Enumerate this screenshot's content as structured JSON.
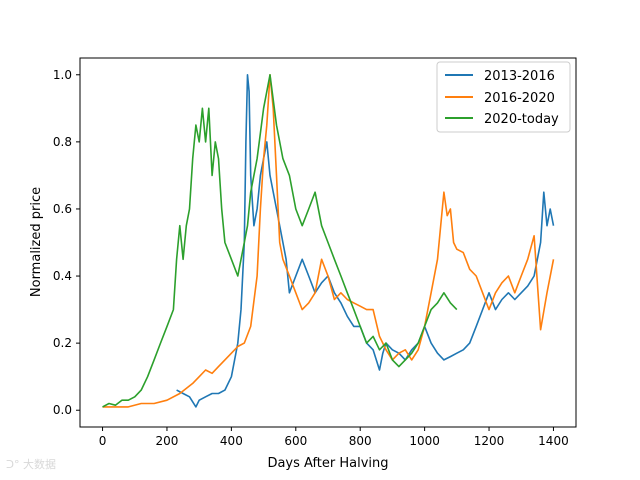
{
  "chart_data": {
    "type": "line",
    "title": "",
    "xlabel": "Days After Halving",
    "ylabel": "Normalized price",
    "xlim": [
      -70,
      1470
    ],
    "ylim": [
      -0.05,
      1.05
    ],
    "x_ticks": [
      0,
      200,
      400,
      600,
      800,
      1000,
      1200,
      1400
    ],
    "x_tick_labels": [
      "0",
      "200",
      "400",
      "600",
      "800",
      "1000",
      "1200",
      "1400"
    ],
    "y_ticks": [
      0.0,
      0.2,
      0.4,
      0.6,
      0.8,
      1.0
    ],
    "y_tick_labels": [
      "0.0",
      "0.2",
      "0.4",
      "0.6",
      "0.8",
      "1.0"
    ],
    "grid": false,
    "legend_position": "top-right",
    "series": [
      {
        "name": "2013-2016",
        "color": "#1f77b4",
        "x": [
          230,
          250,
          270,
          290,
          300,
          320,
          340,
          360,
          380,
          400,
          420,
          430,
          440,
          445,
          450,
          455,
          460,
          470,
          480,
          490,
          500,
          510,
          520,
          540,
          560,
          570,
          580,
          600,
          620,
          640,
          660,
          680,
          700,
          720,
          740,
          760,
          780,
          800,
          820,
          840,
          860,
          870,
          880,
          900,
          920,
          940,
          960,
          980,
          1000,
          1020,
          1040,
          1060,
          1080,
          1100,
          1120,
          1140,
          1160,
          1180,
          1200,
          1220,
          1240,
          1260,
          1280,
          1300,
          1320,
          1340,
          1360,
          1370,
          1380,
          1390,
          1400
        ],
        "y": [
          0.06,
          0.05,
          0.04,
          0.01,
          0.03,
          0.04,
          0.05,
          0.05,
          0.06,
          0.1,
          0.2,
          0.3,
          0.5,
          0.8,
          1.0,
          0.95,
          0.7,
          0.55,
          0.6,
          0.7,
          0.75,
          0.8,
          0.7,
          0.6,
          0.5,
          0.45,
          0.35,
          0.4,
          0.45,
          0.4,
          0.35,
          0.38,
          0.4,
          0.35,
          0.32,
          0.28,
          0.25,
          0.25,
          0.2,
          0.18,
          0.12,
          0.17,
          0.2,
          0.18,
          0.17,
          0.15,
          0.18,
          0.2,
          0.25,
          0.2,
          0.17,
          0.15,
          0.16,
          0.17,
          0.18,
          0.2,
          0.25,
          0.3,
          0.35,
          0.3,
          0.33,
          0.35,
          0.33,
          0.35,
          0.37,
          0.4,
          0.5,
          0.65,
          0.55,
          0.6,
          0.55
        ]
      },
      {
        "name": "2016-2020",
        "color": "#ff7f0e",
        "x": [
          0,
          40,
          80,
          120,
          160,
          200,
          240,
          280,
          300,
          320,
          340,
          360,
          380,
          400,
          420,
          440,
          460,
          480,
          490,
          500,
          510,
          520,
          530,
          540,
          550,
          560,
          580,
          600,
          620,
          640,
          660,
          680,
          700,
          720,
          740,
          760,
          780,
          800,
          820,
          840,
          860,
          870,
          880,
          900,
          920,
          940,
          960,
          980,
          1000,
          1020,
          1040,
          1050,
          1060,
          1070,
          1080,
          1090,
          1100,
          1120,
          1140,
          1160,
          1180,
          1200,
          1220,
          1240,
          1260,
          1280,
          1300,
          1320,
          1340,
          1360,
          1380,
          1400
        ],
        "y": [
          0.01,
          0.01,
          0.01,
          0.02,
          0.02,
          0.03,
          0.05,
          0.08,
          0.1,
          0.12,
          0.11,
          0.13,
          0.15,
          0.17,
          0.19,
          0.2,
          0.25,
          0.4,
          0.6,
          0.75,
          0.85,
          1.0,
          0.9,
          0.7,
          0.5,
          0.45,
          0.4,
          0.35,
          0.3,
          0.32,
          0.35,
          0.45,
          0.4,
          0.33,
          0.35,
          0.33,
          0.32,
          0.31,
          0.3,
          0.3,
          0.22,
          0.2,
          0.18,
          0.15,
          0.17,
          0.18,
          0.15,
          0.18,
          0.25,
          0.35,
          0.45,
          0.55,
          0.65,
          0.58,
          0.6,
          0.5,
          0.48,
          0.47,
          0.42,
          0.4,
          0.35,
          0.3,
          0.35,
          0.38,
          0.4,
          0.35,
          0.4,
          0.45,
          0.52,
          0.24,
          0.35,
          0.45
        ]
      },
      {
        "name": "2020-today",
        "color": "#2ca02c",
        "x": [
          0,
          20,
          40,
          60,
          80,
          100,
          120,
          140,
          160,
          180,
          200,
          220,
          230,
          240,
          250,
          260,
          270,
          280,
          290,
          300,
          310,
          320,
          330,
          340,
          350,
          360,
          370,
          380,
          400,
          420,
          440,
          450,
          460,
          480,
          500,
          520,
          540,
          560,
          580,
          600,
          620,
          640,
          660,
          680,
          700,
          720,
          740,
          760,
          780,
          800,
          820,
          840,
          860,
          880,
          900,
          920,
          940,
          960,
          980,
          1000,
          1020,
          1040,
          1060,
          1080,
          1100
        ],
        "y": [
          0.01,
          0.02,
          0.015,
          0.03,
          0.03,
          0.04,
          0.06,
          0.1,
          0.15,
          0.2,
          0.25,
          0.3,
          0.45,
          0.55,
          0.45,
          0.55,
          0.6,
          0.75,
          0.85,
          0.8,
          0.9,
          0.8,
          0.9,
          0.7,
          0.8,
          0.75,
          0.6,
          0.5,
          0.45,
          0.4,
          0.5,
          0.55,
          0.65,
          0.75,
          0.9,
          1.0,
          0.85,
          0.75,
          0.7,
          0.6,
          0.55,
          0.6,
          0.65,
          0.55,
          0.5,
          0.45,
          0.4,
          0.35,
          0.3,
          0.25,
          0.2,
          0.22,
          0.18,
          0.2,
          0.15,
          0.13,
          0.15,
          0.17,
          0.2,
          0.25,
          0.3,
          0.32,
          0.35,
          0.32,
          0.3
        ]
      }
    ]
  },
  "watermark": "大数据"
}
